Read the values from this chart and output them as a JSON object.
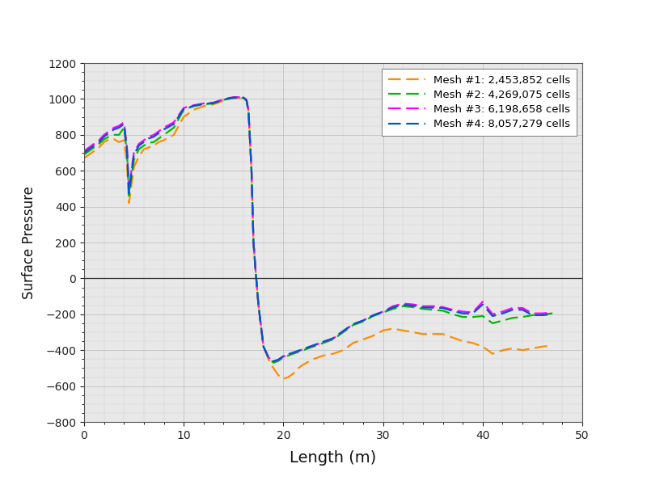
{
  "title": "",
  "xlabel": "Length (m)",
  "ylabel": "Surface Pressure",
  "xlim": [
    0,
    50
  ],
  "ylim": [
    -800,
    1200
  ],
  "xticks": [
    0,
    10,
    20,
    30,
    40,
    50
  ],
  "yticks": [
    -800,
    -600,
    -400,
    -200,
    0,
    200,
    400,
    600,
    800,
    1000,
    1200
  ],
  "fig_background": "#ffffff",
  "plot_background": "#e8e8e8",
  "legend_labels": [
    "Mesh #1: 2,453,852 cells",
    "Mesh #2: 4,269,075 cells",
    "Mesh #3: 6,198,658 cells",
    "Mesh #4: 8,057,279 cells"
  ],
  "colors": [
    "#FF8C00",
    "#00BB00",
    "#FF00FF",
    "#0055CC"
  ],
  "linewidth": 1.6,
  "figsize": [
    8.0,
    6.0
  ],
  "dpi": 100,
  "mesh1_x": [
    0,
    0.5,
    1,
    1.5,
    2,
    2.5,
    3,
    3.5,
    4,
    4.3,
    4.5,
    4.8,
    5,
    5.5,
    6,
    6.5,
    7,
    7.5,
    8,
    9,
    10,
    11,
    12,
    13,
    14,
    14.5,
    15,
    15.5,
    16,
    16.3,
    16.5,
    16.8,
    17,
    17.2,
    17.5,
    18,
    18.5,
    19,
    19.5,
    20,
    20.5,
    21,
    21.5,
    22,
    23,
    24,
    25,
    26,
    27,
    28,
    29,
    30,
    31,
    32,
    33,
    34,
    35,
    36,
    37,
    38,
    39,
    40,
    41,
    42,
    43,
    44,
    45,
    46,
    47
  ],
  "mesh1_y": [
    670,
    690,
    710,
    730,
    760,
    775,
    775,
    760,
    770,
    640,
    420,
    540,
    620,
    680,
    720,
    730,
    740,
    760,
    770,
    800,
    900,
    940,
    960,
    970,
    990,
    1000,
    1005,
    1005,
    1005,
    990,
    930,
    600,
    200,
    50,
    -150,
    -380,
    -450,
    -500,
    -540,
    -560,
    -550,
    -530,
    -500,
    -480,
    -450,
    -430,
    -420,
    -400,
    -360,
    -340,
    -320,
    -290,
    -280,
    -290,
    -300,
    -310,
    -310,
    -310,
    -330,
    -350,
    -360,
    -380,
    -420,
    -400,
    -390,
    -400,
    -390,
    -380,
    -375
  ],
  "mesh2_x": [
    0,
    0.5,
    1,
    1.5,
    2,
    2.5,
    3,
    3.5,
    4,
    4.3,
    4.5,
    4.8,
    5,
    5.5,
    6,
    6.5,
    7,
    7.5,
    8,
    9,
    10,
    11,
    12,
    13,
    14,
    14.5,
    15,
    15.5,
    16,
    16.3,
    16.5,
    16.8,
    17,
    17.2,
    17.5,
    18,
    18.5,
    19,
    19.5,
    20,
    20.5,
    21,
    21.5,
    22,
    23,
    24,
    25,
    26,
    27,
    28,
    29,
    30,
    31,
    32,
    33,
    34,
    35,
    36,
    37,
    38,
    39,
    40,
    41,
    42,
    43,
    44,
    45,
    46,
    47
  ],
  "mesh2_y": [
    690,
    710,
    730,
    750,
    775,
    790,
    800,
    800,
    840,
    700,
    460,
    580,
    660,
    720,
    740,
    755,
    760,
    780,
    800,
    840,
    940,
    960,
    970,
    975,
    995,
    1000,
    1005,
    1005,
    1005,
    990,
    930,
    600,
    200,
    50,
    -150,
    -380,
    -440,
    -470,
    -460,
    -440,
    -430,
    -420,
    -410,
    -400,
    -380,
    -360,
    -340,
    -300,
    -260,
    -240,
    -210,
    -190,
    -170,
    -155,
    -160,
    -170,
    -175,
    -180,
    -200,
    -215,
    -215,
    -210,
    -250,
    -235,
    -220,
    -215,
    -205,
    -200,
    -195
  ],
  "mesh3_x": [
    0,
    0.5,
    1,
    1.5,
    2,
    2.5,
    3,
    3.5,
    4,
    4.3,
    4.5,
    4.8,
    5,
    5.5,
    6,
    6.5,
    7,
    7.5,
    8,
    9,
    10,
    11,
    12,
    13,
    14,
    14.5,
    15,
    15.5,
    16,
    16.3,
    16.5,
    16.8,
    17,
    17.2,
    17.5,
    18,
    18.5,
    19,
    19.5,
    20,
    20.5,
    21,
    21.5,
    22,
    23,
    24,
    25,
    26,
    27,
    28,
    29,
    30,
    31,
    32,
    33,
    34,
    35,
    36,
    37,
    38,
    39,
    40,
    41,
    42,
    43,
    44,
    45,
    46,
    47
  ],
  "mesh3_y": [
    710,
    730,
    750,
    770,
    800,
    820,
    840,
    850,
    870,
    730,
    490,
    620,
    700,
    750,
    770,
    790,
    800,
    820,
    840,
    870,
    950,
    965,
    975,
    980,
    998,
    1005,
    1010,
    1010,
    1010,
    995,
    935,
    600,
    200,
    50,
    -150,
    -380,
    -440,
    -465,
    -455,
    -435,
    -425,
    -415,
    -405,
    -395,
    -375,
    -355,
    -335,
    -295,
    -255,
    -235,
    -205,
    -185,
    -155,
    -140,
    -145,
    -155,
    -155,
    -160,
    -175,
    -185,
    -190,
    -130,
    -200,
    -185,
    -165,
    -165,
    -195,
    -195,
    -190
  ],
  "mesh4_x": [
    0,
    0.5,
    1,
    1.5,
    2,
    2.5,
    3,
    3.5,
    4,
    4.3,
    4.5,
    4.8,
    5,
    5.5,
    6,
    6.5,
    7,
    7.5,
    8,
    9,
    10,
    11,
    12,
    13,
    14,
    14.5,
    15,
    15.5,
    16,
    16.3,
    16.5,
    16.8,
    17,
    17.2,
    17.5,
    18,
    18.5,
    19,
    19.5,
    20,
    20.5,
    21,
    21.5,
    22,
    23,
    24,
    25,
    26,
    27,
    28,
    29,
    30,
    31,
    32,
    33,
    34,
    35,
    36,
    37,
    38,
    39,
    40,
    41,
    42,
    43,
    44,
    45,
    46,
    47
  ],
  "mesh4_y": [
    700,
    720,
    740,
    760,
    790,
    810,
    830,
    840,
    860,
    720,
    475,
    610,
    690,
    740,
    760,
    780,
    790,
    810,
    830,
    860,
    945,
    962,
    972,
    978,
    996,
    1003,
    1008,
    1008,
    1008,
    993,
    933,
    600,
    200,
    50,
    -150,
    -380,
    -440,
    -462,
    -452,
    -433,
    -422,
    -413,
    -403,
    -393,
    -373,
    -353,
    -333,
    -293,
    -255,
    -235,
    -206,
    -187,
    -162,
    -148,
    -152,
    -162,
    -163,
    -165,
    -182,
    -195,
    -195,
    -145,
    -210,
    -195,
    -175,
    -175,
    -205,
    -205,
    -200
  ]
}
